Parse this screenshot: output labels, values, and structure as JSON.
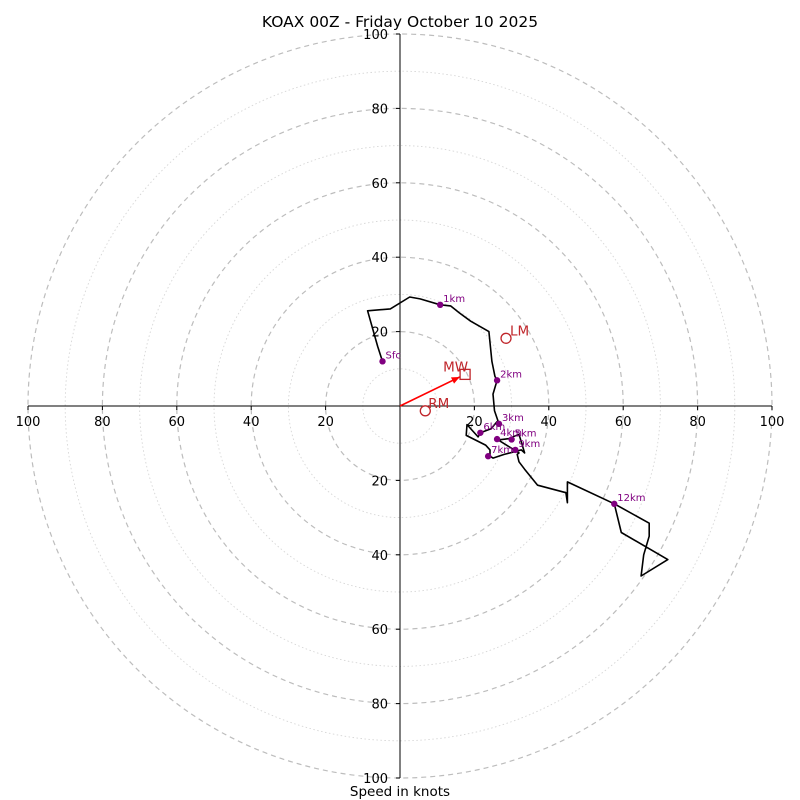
{
  "chart_data": {
    "type": "hodograph",
    "title": "KOAX 00Z - Friday October 10 2025",
    "xlabel": "Speed in knots",
    "units": "knots",
    "range": [
      -100,
      100
    ],
    "rings_major": [
      20,
      40,
      60,
      80,
      100
    ],
    "rings_minor": [
      10,
      30,
      50,
      70,
      90
    ],
    "tick_labels_x": [
      {
        "value": -100,
        "label": "100"
      },
      {
        "value": -80,
        "label": "80"
      },
      {
        "value": -60,
        "label": "60"
      },
      {
        "value": -40,
        "label": "40"
      },
      {
        "value": -20,
        "label": "20"
      },
      {
        "value": 20,
        "label": "20"
      },
      {
        "value": 40,
        "label": "40"
      },
      {
        "value": 60,
        "label": "60"
      },
      {
        "value": 80,
        "label": "80"
      },
      {
        "value": 100,
        "label": "100"
      }
    ],
    "tick_labels_y": [
      {
        "value": 100,
        "label": "100"
      },
      {
        "value": 80,
        "label": "80"
      },
      {
        "value": 60,
        "label": "60"
      },
      {
        "value": 40,
        "label": "40"
      },
      {
        "value": 20,
        "label": "20"
      },
      {
        "value": -20,
        "label": "20"
      },
      {
        "value": -40,
        "label": "40"
      },
      {
        "value": -60,
        "label": "60"
      },
      {
        "value": -80,
        "label": "80"
      },
      {
        "value": -100,
        "label": "100"
      }
    ],
    "hodograph_uv": [
      [
        -4.7,
        12.0
      ],
      [
        -6.0,
        16.0
      ],
      [
        -8.7,
        25.6
      ],
      [
        -2.6,
        26.1
      ],
      [
        2.6,
        29.3
      ],
      [
        5.4,
        28.8
      ],
      [
        10.8,
        27.2
      ],
      [
        13.6,
        26.9
      ],
      [
        16.0,
        25.0
      ],
      [
        19.0,
        22.8
      ],
      [
        23.9,
        20.0
      ],
      [
        24.7,
        12.0
      ],
      [
        25.5,
        8.0
      ],
      [
        26.1,
        6.9
      ],
      [
        25.0,
        3.2
      ],
      [
        25.4,
        -1.3
      ],
      [
        26.6,
        -4.8
      ],
      [
        26.1,
        -4.2
      ],
      [
        24.5,
        -6.1
      ],
      [
        21.6,
        -7.2
      ],
      [
        21.0,
        -8.3
      ],
      [
        18.0,
        -5.0
      ],
      [
        17.8,
        -7.9
      ],
      [
        19.0,
        -8.5
      ],
      [
        23.0,
        -10.5
      ],
      [
        24.2,
        -11.8
      ],
      [
        24.2,
        -13.5
      ],
      [
        25.0,
        -14.0
      ],
      [
        28.0,
        -13.0
      ],
      [
        30.7,
        -12.3
      ],
      [
        32.6,
        -11.8
      ],
      [
        33.5,
        -12.6
      ],
      [
        32.0,
        -7.6
      ],
      [
        29.2,
        -8.8
      ],
      [
        26.4,
        -9.1
      ],
      [
        32.0,
        -12.6
      ],
      [
        31.5,
        -13.0
      ],
      [
        32.0,
        -15.0
      ],
      [
        33.5,
        -17.0
      ],
      [
        37.0,
        -21.3
      ],
      [
        44.6,
        -23.3
      ],
      [
        45.0,
        -26.0
      ],
      [
        45.0,
        -20.4
      ],
      [
        57.6,
        -26.3
      ],
      [
        67.0,
        -31.5
      ],
      [
        67.0,
        -35.0
      ],
      [
        65.5,
        -40.0
      ],
      [
        64.8,
        -45.7
      ],
      [
        72.0,
        -41.3
      ],
      [
        59.5,
        -34.0
      ],
      [
        57.6,
        -26.3
      ]
    ],
    "height_markers": [
      {
        "label": "Sfc",
        "u": -4.7,
        "v": 12.0
      },
      {
        "label": "1km",
        "u": 10.8,
        "v": 27.2
      },
      {
        "label": "2km",
        "u": 26.1,
        "v": 6.9
      },
      {
        "label": "3km",
        "u": 26.6,
        "v": -4.8
      },
      {
        "label": "6km",
        "u": 21.6,
        "v": -7.2
      },
      {
        "label": "4km",
        "u": 26.1,
        "v": -8.9
      },
      {
        "label": "5km",
        "u": 30.0,
        "v": -9.0
      },
      {
        "label": "9km",
        "u": 31.0,
        "v": -11.8
      },
      {
        "label": "7km",
        "u": 23.7,
        "v": -13.5
      },
      {
        "label": "12km",
        "u": 57.6,
        "v": -26.3
      }
    ],
    "storm_motion": {
      "mw_label": "MW",
      "mw": {
        "u": 17.5,
        "v": 8.5
      },
      "lm_label": "LM",
      "lm": {
        "u": 28.5,
        "v": 18.2
      },
      "rm_label": "RM",
      "rm": {
        "u": 6.8,
        "v": -1.3
      }
    },
    "colors": {
      "hodograph": "#000000",
      "markers": "#800080",
      "motion": "#c0262b",
      "motion_vector": "#ff0000",
      "ring_major": "#bdbdbd",
      "ring_minor": "#d6d6d6"
    }
  }
}
